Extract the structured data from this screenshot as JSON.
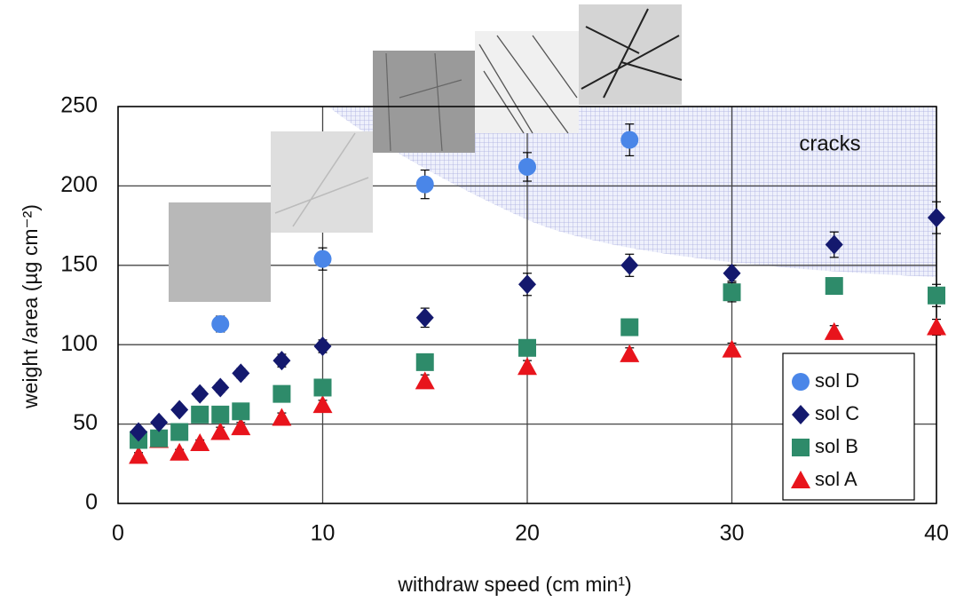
{
  "chart_data": {
    "type": "scatter",
    "x_label": "withdraw speed (cm min¹)",
    "y_label": "weight /area (µg cm⁻²)",
    "annotation": "cracks",
    "xlim": [
      0,
      40
    ],
    "xticks": [
      0,
      10,
      20,
      30,
      40
    ],
    "ylim": [
      0,
      250
    ],
    "yticks": [
      0,
      50,
      100,
      150,
      200,
      250
    ],
    "grid": true,
    "legend_position": "lower right",
    "series": [
      {
        "name": "sol D",
        "color": "#4a86e8",
        "marker": "circle",
        "x": [
          5,
          10,
          15,
          20,
          25
        ],
        "values": [
          113,
          154,
          201,
          212,
          229
        ],
        "errors": [
          5,
          7,
          9,
          9,
          10
        ]
      },
      {
        "name": "sol C",
        "color": "#14196e",
        "marker": "diamond",
        "x": [
          1,
          2,
          3,
          4,
          5,
          6,
          8,
          10,
          15,
          20,
          25,
          30,
          35,
          40
        ],
        "values": [
          45,
          51,
          59,
          69,
          73,
          82,
          90,
          99,
          117,
          138,
          150,
          145,
          163,
          180
        ],
        "errors": [
          2,
          2,
          2,
          3,
          3,
          3,
          4,
          4,
          6,
          7,
          7,
          5,
          8,
          10
        ]
      },
      {
        "name": "sol B",
        "color": "#2e8b6a",
        "marker": "square",
        "x": [
          1,
          2,
          3,
          4,
          5,
          6,
          8,
          10,
          15,
          20,
          25,
          30,
          35,
          40
        ],
        "values": [
          40,
          41,
          45,
          56,
          56,
          58,
          69,
          73,
          89,
          98,
          111,
          133,
          137,
          131
        ],
        "errors": [
          2,
          2,
          2,
          3,
          3,
          3,
          3,
          3,
          4,
          4,
          4,
          6,
          5,
          7
        ]
      },
      {
        "name": "sol A",
        "color": "#e8141c",
        "marker": "triangle",
        "x": [
          1,
          2,
          3,
          4,
          5,
          6,
          8,
          10,
          15,
          20,
          25,
          30,
          35,
          40
        ],
        "values": [
          30,
          40,
          32,
          38,
          45,
          48,
          54,
          62,
          77,
          86,
          94,
          97,
          108,
          111
        ],
        "errors": [
          2,
          2,
          2,
          2,
          3,
          3,
          3,
          3,
          4,
          4,
          4,
          4,
          4,
          5
        ]
      }
    ]
  }
}
